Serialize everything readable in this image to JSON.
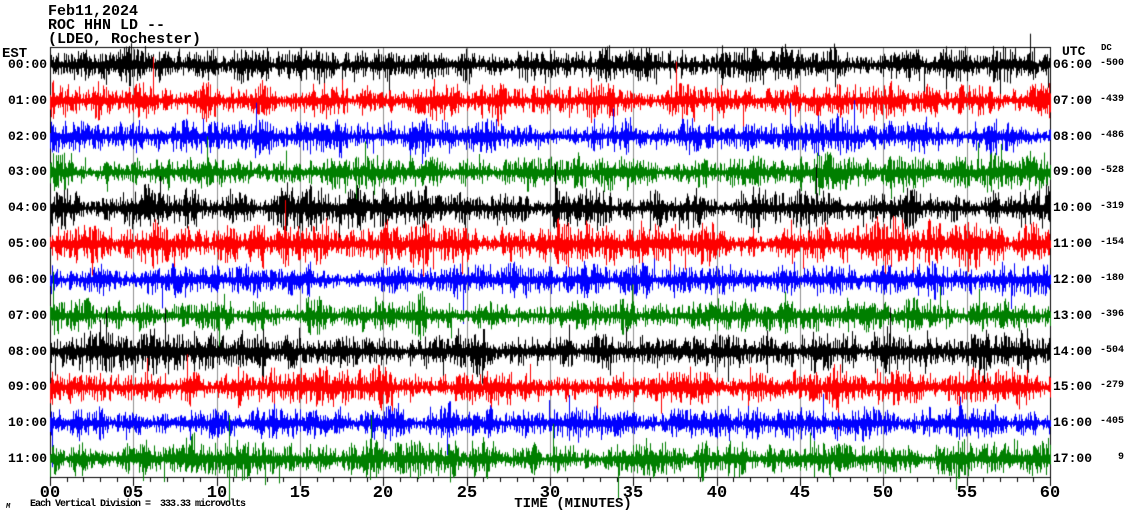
{
  "chart_data": {
    "type": "line",
    "subtype": "helicorder-seismogram",
    "title_lines": [
      "Feb11,2024",
      "ROC HHN LD --",
      "(LDEO, Rochester)"
    ],
    "left_axis_label": "EST",
    "right_axis_label": "UTC",
    "dc_column_label": "DC",
    "xlabel": "TIME (MINUTES)",
    "x_ticks": [
      "00",
      "05",
      "10",
      "15",
      "20",
      "25",
      "30",
      "35",
      "40",
      "45",
      "50",
      "55",
      "60"
    ],
    "x_range_minutes": [
      0,
      60
    ],
    "x_major_tick_minutes": 5,
    "x_minor_tick_minutes": 1,
    "grid_interval_minutes": 5,
    "footer": "Each Vertical Division =  333.33 microvolts",
    "watermark": "M",
    "legend": "none",
    "grid": "vertical-only",
    "colors": {
      "trace_cycle": [
        "#000000",
        "#ff0000",
        "#0000ff",
        "#007f00"
      ],
      "grid": "#909090",
      "axis": "#000000",
      "background": "#ffffff"
    },
    "rows": [
      {
        "est": "00:00",
        "utc": "06:00",
        "dc": "-500",
        "color": "#000000",
        "relative_amplitude": 1.0
      },
      {
        "est": "01:00",
        "utc": "07:00",
        "dc": "-439",
        "color": "#ff0000",
        "relative_amplitude": 1.1
      },
      {
        "est": "02:00",
        "utc": "08:00",
        "dc": "-486",
        "color": "#0000ff",
        "relative_amplitude": 1.0
      },
      {
        "est": "03:00",
        "utc": "09:00",
        "dc": "-528",
        "color": "#007f00",
        "relative_amplitude": 0.95
      },
      {
        "est": "04:00",
        "utc": "10:00",
        "dc": "-319",
        "color": "#000000",
        "relative_amplitude": 1.15
      },
      {
        "est": "05:00",
        "utc": "11:00",
        "dc": "-154",
        "color": "#ff0000",
        "relative_amplitude": 1.25
      },
      {
        "est": "06:00",
        "utc": "12:00",
        "dc": "-180",
        "color": "#0000ff",
        "relative_amplitude": 0.9
      },
      {
        "est": "07:00",
        "utc": "13:00",
        "dc": "-396",
        "color": "#007f00",
        "relative_amplitude": 1.0
      },
      {
        "est": "08:00",
        "utc": "14:00",
        "dc": "-504",
        "color": "#000000",
        "relative_amplitude": 1.1
      },
      {
        "est": "09:00",
        "utc": "15:00",
        "dc": "-279",
        "color": "#ff0000",
        "relative_amplitude": 1.05
      },
      {
        "est": "10:00",
        "utc": "16:00",
        "dc": "-405",
        "color": "#0000ff",
        "relative_amplitude": 0.95
      },
      {
        "est": "11:00",
        "utc": "17:00",
        "dc": "9",
        "color": "#007f00",
        "relative_amplitude": 1.05
      }
    ]
  }
}
